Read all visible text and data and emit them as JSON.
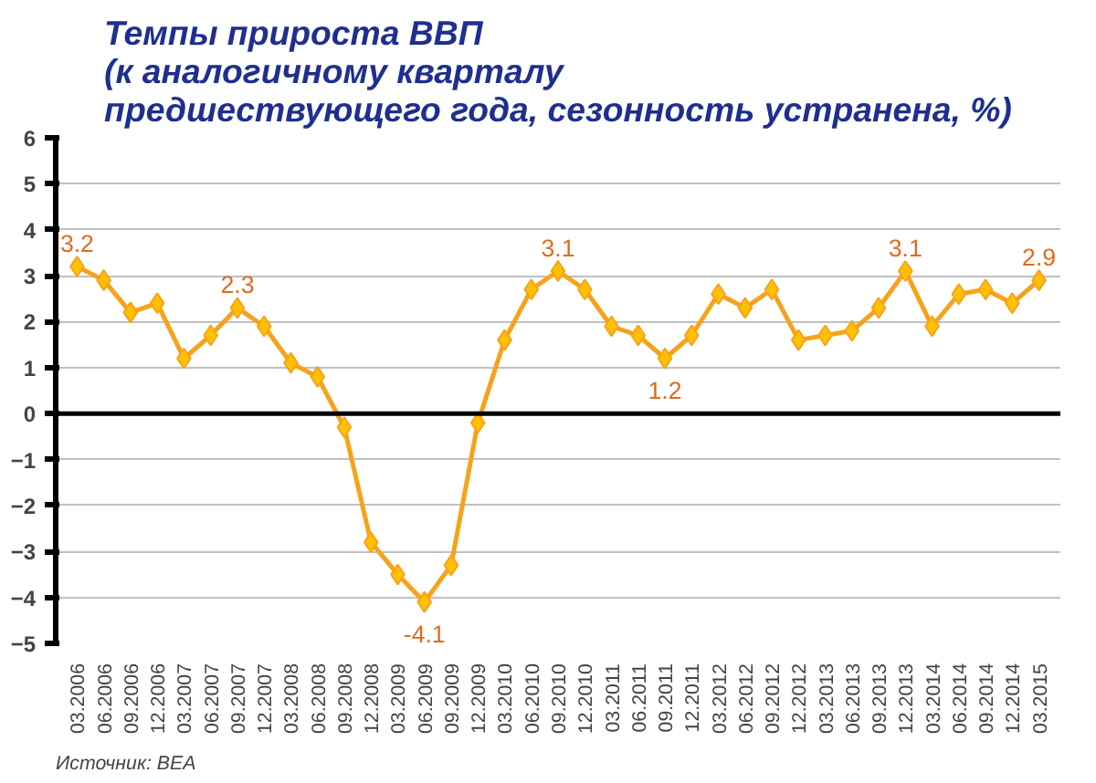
{
  "chart_data": {
    "type": "line",
    "title": "Темпы прироста ВВП\n(к аналогичному кварталу\nпредшествующего года, сезонность устранена, %)",
    "categories": [
      "03.2006",
      "06.2006",
      "09.2006",
      "12.2006",
      "03.2007",
      "06.2007",
      "09.2007",
      "12.2007",
      "03.2008",
      "06.2008",
      "09.2008",
      "12.2008",
      "03.2009",
      "06.2009",
      "09.2009",
      "12.2009",
      "03.2010",
      "06.2010",
      "09.2010",
      "12.2010",
      "03.2011",
      "06.2011",
      "09.2011",
      "12.2011",
      "03.2012",
      "06.2012",
      "09.2012",
      "12.2012",
      "03.2013",
      "06.2013",
      "09.2013",
      "12.2013",
      "03.2014",
      "06.2014",
      "09.2014",
      "12.2014",
      "03.2015"
    ],
    "values": [
      3.2,
      2.9,
      2.2,
      2.4,
      1.2,
      1.7,
      2.3,
      1.9,
      1.1,
      0.8,
      -0.3,
      -2.8,
      -3.5,
      -4.1,
      -3.3,
      -0.2,
      1.6,
      2.7,
      3.1,
      2.7,
      1.9,
      1.7,
      1.2,
      1.7,
      2.6,
      2.3,
      2.7,
      1.6,
      1.7,
      1.8,
      2.3,
      3.1,
      1.9,
      2.6,
      2.7,
      2.4,
      2.9
    ],
    "value_labels": [
      "3.2",
      null,
      null,
      null,
      null,
      null,
      "2.3",
      null,
      null,
      null,
      null,
      null,
      null,
      "-4.1",
      null,
      null,
      null,
      null,
      "3.1",
      null,
      null,
      null,
      "1.2",
      null,
      null,
      null,
      null,
      null,
      null,
      null,
      null,
      "3.1",
      null,
      null,
      null,
      null,
      "2.9"
    ],
    "color": "#f7a21b",
    "marker": "diamond",
    "ylim": [
      -5,
      6
    ],
    "yticks": [
      -5,
      -4,
      -3,
      -2,
      -1,
      0,
      1,
      2,
      3,
      4,
      5,
      6
    ],
    "grid": "y",
    "ref_lines": [
      {
        "axis": "y",
        "value": 0,
        "color": "#000000"
      }
    ],
    "annotations": [
      "Источник: BEA"
    ]
  }
}
